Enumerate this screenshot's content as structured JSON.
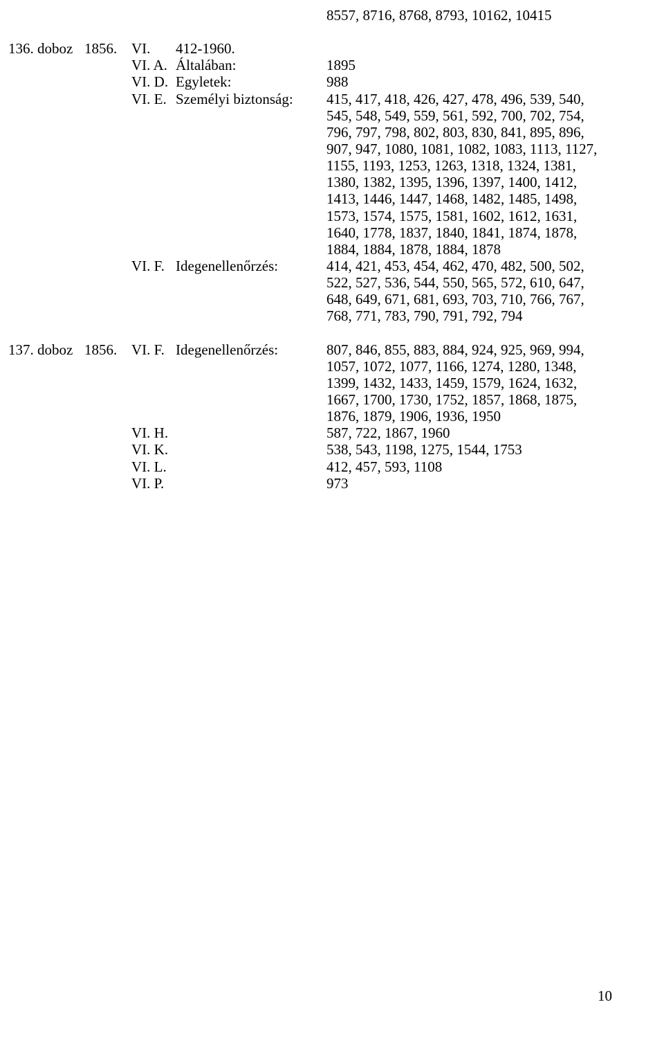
{
  "topblock": "8557, 8716, 8768, 8793, 10162, 10415",
  "entries": [
    {
      "box": "136. doboz",
      "year": "1856.",
      "rows": [
        {
          "code": "VI.",
          "label": "412-1960.",
          "value": ""
        },
        {
          "code": "VI. A.",
          "label": "Általában:",
          "value": "1895"
        },
        {
          "code": "VI. D.",
          "label": "Egyletek:",
          "value": "988"
        },
        {
          "code": "VI. E.",
          "label": "Személyi biztonság:",
          "value": "415, 417, 418, 426, 427, 478, 496, 539, 540, 545, 548, 549, 559, 561, 592, 700, 702, 754, 796, 797, 798, 802, 803, 830, 841, 895, 896, 907, 947, 1080, 1081, 1082, 1083, 1113, 1127, 1155, 1193, 1253, 1263, 1318, 1324, 1381, 1380, 1382, 1395, 1396, 1397, 1400, 1412, 1413, 1446, 1447, 1468, 1482, 1485, 1498, 1573, 1574, 1575, 1581, 1602, 1612, 1631, 1640, 1778, 1837, 1840, 1841, 1874, 1878, 1884, 1884, 1878, 1884, 1878"
        },
        {
          "code": "VI. F.",
          "label": "Idegenellenőrzés:",
          "value": "414, 421, 453, 454, 462, 470, 482, 500, 502, 522, 527, 536, 544, 550, 565, 572, 610, 647, 648, 649, 671, 681, 693, 703, 710, 766, 767, 768, 771, 783, 790, 791, 792, 794"
        }
      ]
    },
    {
      "box": "137. doboz",
      "year": "1856.",
      "rows": [
        {
          "code": "VI. F.",
          "label": "Idegenellenőrzés:",
          "value": "807, 846, 855, 883, 884, 924, 925, 969, 994, 1057, 1072, 1077, 1166, 1274, 1280, 1348, 1399, 1432, 1433, 1459, 1579, 1624, 1632, 1667, 1700, 1730, 1752, 1857, 1868, 1875, 1876, 1879, 1906, 1936, 1950"
        },
        {
          "code": "VI. H.",
          "label": "",
          "value": "587, 722, 1867, 1960"
        },
        {
          "code": "VI. K.",
          "label": "",
          "value": "538, 543, 1198, 1275, 1544, 1753"
        },
        {
          "code": "VI. L.",
          "label": "",
          "value": "412, 457, 593, 1108"
        },
        {
          "code": "VI. P.",
          "label": "",
          "value": "973"
        }
      ]
    }
  ],
  "page_number": "10"
}
